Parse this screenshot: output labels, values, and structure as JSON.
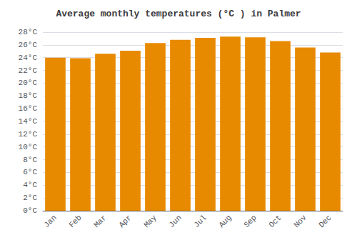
{
  "chart_data": {
    "type": "bar",
    "title": "Average monthly temperatures (°C ) in Palmer",
    "categories": [
      "Jan",
      "Feb",
      "Mar",
      "Apr",
      "May",
      "Jun",
      "Jul",
      "Aug",
      "Sep",
      "Oct",
      "Nov",
      "Dec"
    ],
    "values": [
      24.0,
      23.9,
      24.6,
      25.1,
      26.3,
      26.8,
      27.1,
      27.3,
      27.2,
      26.6,
      25.6,
      24.8
    ],
    "color": "#E88A00",
    "ylim": [
      0,
      28
    ],
    "yticks": [
      {
        "value": 0,
        "label": "0°C"
      },
      {
        "value": 2,
        "label": "2°C"
      },
      {
        "value": 4,
        "label": "4°C"
      },
      {
        "value": 6,
        "label": "6°C"
      },
      {
        "value": 8,
        "label": "8°C"
      },
      {
        "value": 10,
        "label": "10°C"
      },
      {
        "value": 12,
        "label": "12°C"
      },
      {
        "value": 14,
        "label": "14°C"
      },
      {
        "value": 16,
        "label": "16°C"
      },
      {
        "value": 18,
        "label": "18°C"
      },
      {
        "value": 20,
        "label": "20°C"
      },
      {
        "value": 22,
        "label": "22°C"
      },
      {
        "value": 24,
        "label": "24°C"
      },
      {
        "value": 26,
        "label": "26°C"
      },
      {
        "value": 28,
        "label": "28°C"
      }
    ],
    "grid": true
  }
}
